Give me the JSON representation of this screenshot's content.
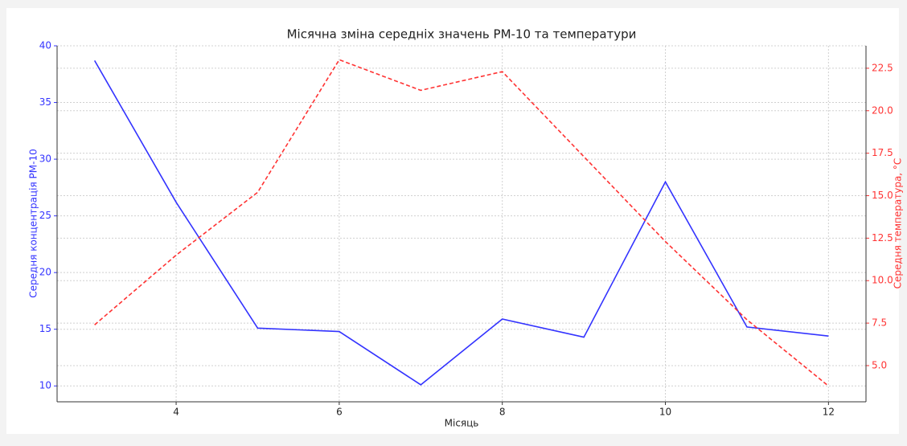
{
  "chart_data": {
    "type": "line",
    "title": "Місячна зміна середніх значень PM-10 та температури",
    "xlabel": "Місяць",
    "ylabel": "Середня концентрація PM-10",
    "y2label": "Середня температура, °C",
    "x": [
      3,
      4,
      5,
      6,
      7,
      8,
      9,
      10,
      11,
      12
    ],
    "series": [
      {
        "name": "PM-10",
        "color": "#3333ff",
        "dash": false,
        "values": [
          38.7,
          26.2,
          15.1,
          14.8,
          10.1,
          15.9,
          14.3,
          28.0,
          15.2,
          14.4
        ]
      },
      {
        "name": "Температура",
        "color": "#ff3333",
        "dash": true,
        "axis": "y2",
        "values": [
          7.4,
          11.5,
          15.2,
          23.0,
          21.2,
          22.3,
          17.3,
          12.3,
          7.7,
          3.8
        ]
      }
    ],
    "xlim": [
      2.54,
      12.46
    ],
    "xticks": [
      4,
      6,
      8,
      10,
      12
    ],
    "ylim": [
      8.6,
      40
    ],
    "yticks": [
      10,
      15,
      20,
      25,
      30,
      35,
      40
    ],
    "y2lim": [
      2.87,
      23.82
    ],
    "y2ticks": [
      {
        "value": 5,
        "label": "5.0"
      },
      7.5,
      {
        "value": 10,
        "label": "10.0"
      },
      12.5,
      {
        "value": 15,
        "label": "15.0"
      },
      17.5,
      {
        "value": 20,
        "label": "20.0"
      },
      22.5
    ],
    "grid": true
  }
}
